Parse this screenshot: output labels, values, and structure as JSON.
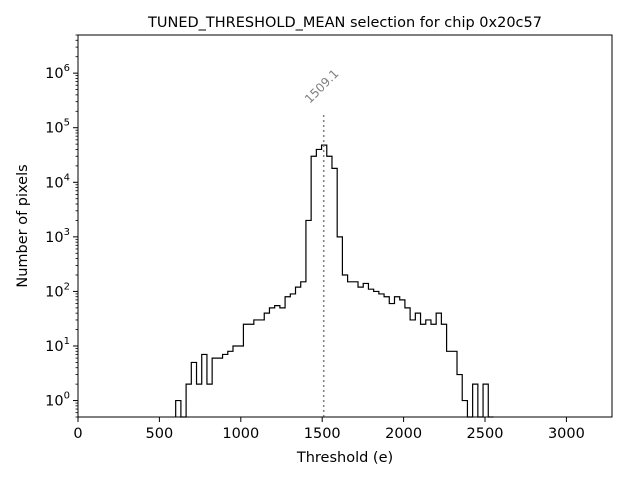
{
  "chart_data": {
    "type": "histogram",
    "title": "TUNED_THRESHOLD_MEAN selection for chip 0x20c57",
    "xlabel": "Threshold (e)",
    "ylabel": "Number of pixels",
    "x_scale": "linear",
    "y_scale": "log",
    "xlim": [
      0,
      3280
    ],
    "ylim": [
      0.5,
      5000000
    ],
    "x_ticks": [
      0,
      500,
      1000,
      1500,
      2000,
      2500,
      3000
    ],
    "x_tick_labels": [
      "0",
      "500",
      "1000",
      "1500",
      "2000",
      "2500",
      "3000"
    ],
    "y_ticks": [
      1,
      10,
      100,
      1000,
      10000,
      100000,
      1000000
    ],
    "y_tick_labels": [
      {
        "base": "10",
        "exp": "0"
      },
      {
        "base": "10",
        "exp": "1"
      },
      {
        "base": "10",
        "exp": "2"
      },
      {
        "base": "10",
        "exp": "3"
      },
      {
        "base": "10",
        "exp": "4"
      },
      {
        "base": "10",
        "exp": "5"
      },
      {
        "base": "10",
        "exp": "6"
      }
    ],
    "grid": false,
    "bins": {
      "edges": [
        600,
        632,
        664,
        696,
        728,
        760,
        792,
        824,
        856,
        888,
        920,
        952,
        984,
        1016,
        1048,
        1080,
        1112,
        1144,
        1176,
        1208,
        1240,
        1272,
        1304,
        1336,
        1368,
        1400,
        1432,
        1464,
        1496,
        1528,
        1560,
        1592,
        1624,
        1656,
        1688,
        1720,
        1752,
        1784,
        1816,
        1848,
        1880,
        1912,
        1944,
        1976,
        2008,
        2040,
        2072,
        2104,
        2136,
        2168,
        2200,
        2232,
        2264,
        2296,
        2328,
        2360,
        2392,
        2424,
        2456,
        2488,
        2520,
        2552
      ],
      "counts": [
        1,
        0,
        2,
        5,
        2,
        7,
        2,
        6,
        6,
        7,
        8,
        10,
        10,
        25,
        25,
        30,
        30,
        40,
        50,
        55,
        50,
        80,
        90,
        120,
        150,
        2000,
        30000,
        40000,
        48000,
        30000,
        18000,
        1000,
        200,
        150,
        150,
        120,
        140,
        110,
        100,
        90,
        80,
        60,
        80,
        70,
        50,
        30,
        40,
        25,
        30,
        25,
        40,
        25,
        8,
        8,
        3,
        1,
        0,
        2,
        0,
        2,
        0
      ]
    },
    "marker": {
      "x": 1509.1,
      "label": "1509.1",
      "color": "#808080"
    },
    "colors": {
      "line": "#000000",
      "marker": "#808080"
    }
  }
}
